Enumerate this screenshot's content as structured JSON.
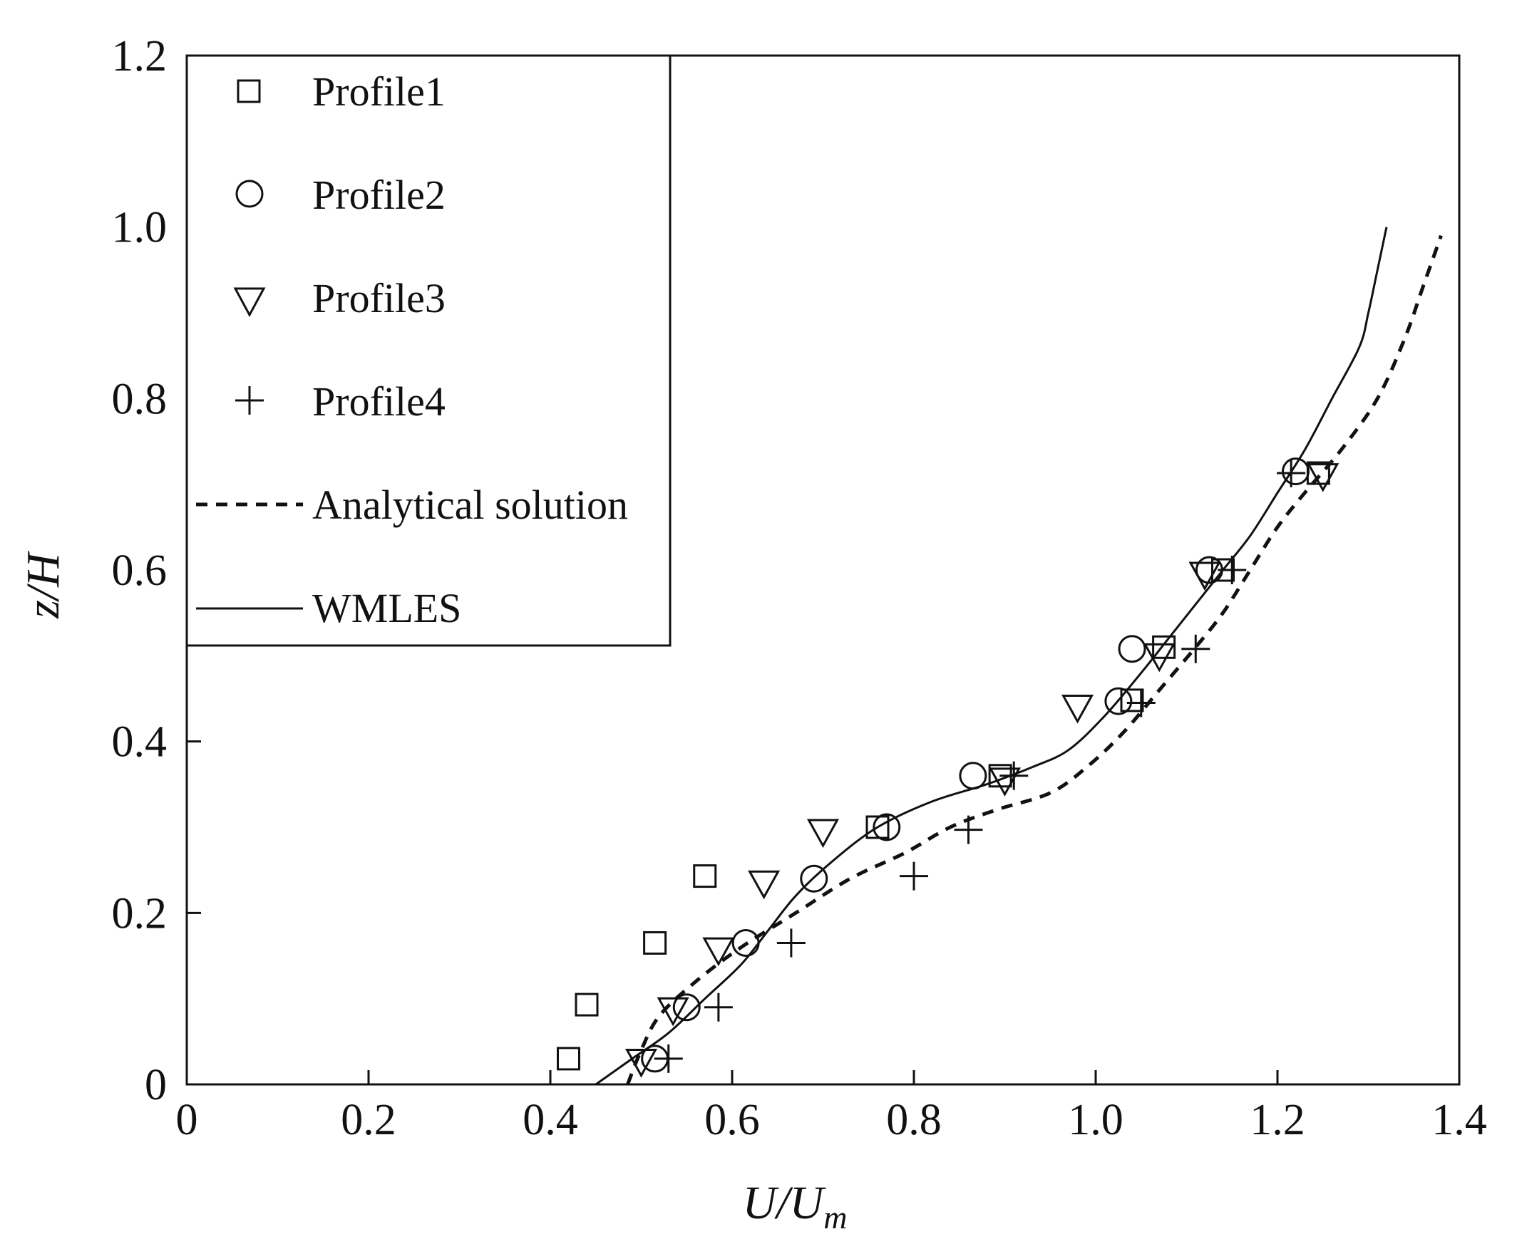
{
  "chart_data": {
    "type": "line",
    "xlabel": "U/U_m",
    "ylabel": "z/H",
    "xlim": [
      0,
      1.4
    ],
    "ylim": [
      0,
      1.2
    ],
    "x_ticks": [
      {
        "value": 0,
        "label": "0"
      },
      {
        "value": 0.2,
        "label": "0.2"
      },
      {
        "value": 0.4,
        "label": "0.4"
      },
      {
        "value": 0.6,
        "label": "0.6"
      },
      {
        "value": 0.8,
        "label": "0.8"
      },
      {
        "value": 1.0,
        "label": "1.0"
      },
      {
        "value": 1.2,
        "label": "1.2"
      },
      {
        "value": 1.4,
        "label": "1.4"
      }
    ],
    "y_ticks": [
      {
        "value": 0,
        "label": "0"
      },
      {
        "value": 0.2,
        "label": "0.2"
      },
      {
        "value": 0.4,
        "label": "0.4"
      },
      {
        "value": 0.6,
        "label": "0.6"
      },
      {
        "value": 0.8,
        "label": "0.8"
      },
      {
        "value": 1.0,
        "label": "1.0"
      },
      {
        "value": 1.2,
        "label": "1.2"
      }
    ],
    "grid": false,
    "legend_position": "top-left",
    "series": [
      {
        "name": "Profile1",
        "kind": "scatter",
        "marker": "square",
        "points": [
          [
            0.42,
            0.03
          ],
          [
            0.44,
            0.093
          ],
          [
            0.515,
            0.165
          ],
          [
            0.57,
            0.243
          ],
          [
            0.76,
            0.3
          ],
          [
            0.895,
            0.36
          ],
          [
            1.04,
            0.448
          ],
          [
            1.075,
            0.51
          ],
          [
            1.14,
            0.6
          ],
          [
            1.245,
            0.713
          ]
        ]
      },
      {
        "name": "Profile2",
        "kind": "scatter",
        "marker": "circle",
        "points": [
          [
            0.515,
            0.03
          ],
          [
            0.55,
            0.09
          ],
          [
            0.615,
            0.165
          ],
          [
            0.69,
            0.24
          ],
          [
            0.77,
            0.3
          ],
          [
            0.865,
            0.36
          ],
          [
            1.025,
            0.447
          ],
          [
            1.04,
            0.508
          ],
          [
            1.125,
            0.6
          ],
          [
            1.22,
            0.715
          ]
        ]
      },
      {
        "name": "Profile3",
        "kind": "scatter",
        "marker": "triangle-down",
        "points": [
          [
            0.5,
            0.027
          ],
          [
            0.535,
            0.087
          ],
          [
            0.585,
            0.157
          ],
          [
            0.635,
            0.235
          ],
          [
            0.7,
            0.295
          ],
          [
            0.9,
            0.355
          ],
          [
            0.98,
            0.44
          ],
          [
            1.07,
            0.5
          ],
          [
            1.12,
            0.595
          ],
          [
            1.25,
            0.71
          ]
        ]
      },
      {
        "name": "Profile4",
        "kind": "scatter",
        "marker": "plus",
        "points": [
          [
            0.53,
            0.03
          ],
          [
            0.585,
            0.09
          ],
          [
            0.665,
            0.165
          ],
          [
            0.8,
            0.243
          ],
          [
            0.86,
            0.297
          ],
          [
            0.91,
            0.36
          ],
          [
            1.05,
            0.445
          ],
          [
            1.11,
            0.508
          ],
          [
            1.15,
            0.6
          ],
          [
            1.215,
            0.713
          ]
        ]
      },
      {
        "name": "Analytical solution",
        "kind": "line",
        "style": "dashed",
        "points": [
          [
            0.485,
            0
          ],
          [
            0.5,
            0.04
          ],
          [
            0.52,
            0.08
          ],
          [
            0.56,
            0.12
          ],
          [
            0.61,
            0.16
          ],
          [
            0.67,
            0.2
          ],
          [
            0.73,
            0.24
          ],
          [
            0.79,
            0.27
          ],
          [
            0.84,
            0.3
          ],
          [
            0.89,
            0.32
          ],
          [
            0.95,
            0.34
          ],
          [
            0.99,
            0.37
          ],
          [
            1.03,
            0.41
          ],
          [
            1.07,
            0.46
          ],
          [
            1.11,
            0.51
          ],
          [
            1.14,
            0.55
          ],
          [
            1.17,
            0.6
          ],
          [
            1.2,
            0.65
          ],
          [
            1.23,
            0.69
          ],
          [
            1.27,
            0.74
          ],
          [
            1.31,
            0.8
          ],
          [
            1.34,
            0.87
          ],
          [
            1.36,
            0.93
          ],
          [
            1.38,
            0.99
          ]
        ]
      },
      {
        "name": "WMLES",
        "kind": "line",
        "style": "solid",
        "points": [
          [
            0.45,
            0
          ],
          [
            0.49,
            0.03
          ],
          [
            0.53,
            0.06
          ],
          [
            0.57,
            0.1
          ],
          [
            0.61,
            0.14
          ],
          [
            0.64,
            0.18
          ],
          [
            0.67,
            0.22
          ],
          [
            0.71,
            0.26
          ],
          [
            0.76,
            0.3
          ],
          [
            0.82,
            0.33
          ],
          [
            0.88,
            0.35
          ],
          [
            0.93,
            0.37
          ],
          [
            0.97,
            0.39
          ],
          [
            1.01,
            0.43
          ],
          [
            1.05,
            0.48
          ],
          [
            1.08,
            0.52
          ],
          [
            1.11,
            0.56
          ],
          [
            1.14,
            0.6
          ],
          [
            1.17,
            0.64
          ],
          [
            1.2,
            0.69
          ],
          [
            1.23,
            0.74
          ],
          [
            1.26,
            0.8
          ],
          [
            1.29,
            0.86
          ],
          [
            1.3,
            0.9
          ],
          [
            1.31,
            0.95
          ],
          [
            1.32,
            1.0
          ]
        ]
      }
    ]
  }
}
